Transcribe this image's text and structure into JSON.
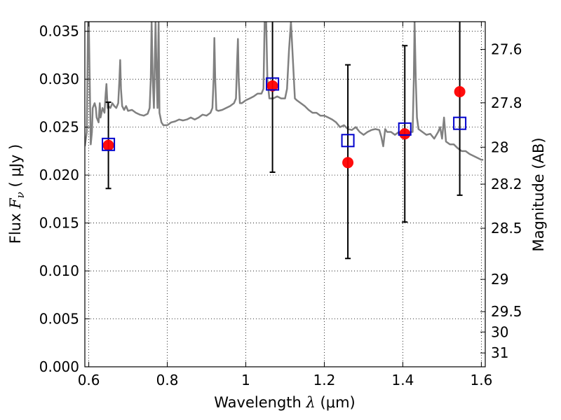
{
  "chart_data": {
    "type": "scatter",
    "xlabel": "Wavelength",
    "xlabel_symbol": "λ",
    "xlabel_unit": "(μm)",
    "ylabel": "Flux",
    "ylabel_symbol": "F",
    "ylabel_subscript": "ν",
    "ylabel_unit": "( μJy )",
    "y2label": "Magnitude (AB)",
    "xlim": [
      0.59,
      1.61
    ],
    "ylim": [
      0.0,
      0.036
    ],
    "grid": true,
    "grid_style": "dotted",
    "x_ticks": [
      {
        "value": 0.6,
        "label": "0.6"
      },
      {
        "value": 0.8,
        "label": "0.8"
      },
      {
        "value": 1.0,
        "label": "1"
      },
      {
        "value": 1.2,
        "label": "1.2"
      },
      {
        "value": 1.4,
        "label": "1.4"
      },
      {
        "value": 1.6,
        "label": "1.6"
      }
    ],
    "y_ticks": [
      {
        "value": 0.0,
        "label": "0.000"
      },
      {
        "value": 0.005,
        "label": "0.005"
      },
      {
        "value": 0.01,
        "label": "0.010"
      },
      {
        "value": 0.015,
        "label": "0.015"
      },
      {
        "value": 0.02,
        "label": "0.020"
      },
      {
        "value": 0.025,
        "label": "0.025"
      },
      {
        "value": 0.03,
        "label": "0.030"
      },
      {
        "value": 0.035,
        "label": "0.035"
      }
    ],
    "y2_ticks": [
      {
        "label": "27.6",
        "mag": 27.6
      },
      {
        "label": "27.8",
        "mag": 27.8
      },
      {
        "label": "28",
        "mag": 28.0
      },
      {
        "label": "28.2",
        "mag": 28.2
      },
      {
        "label": "28.5",
        "mag": 28.5
      },
      {
        "label": "29",
        "mag": 29.0
      },
      {
        "label": "29.5",
        "mag": 29.5
      },
      {
        "label": "30",
        "mag": 30.0
      },
      {
        "label": "31",
        "mag": 31.0
      }
    ],
    "series": [
      {
        "kind": "line",
        "color": "#808080",
        "x": [
          0.59,
          0.595,
          0.598,
          0.6,
          0.605,
          0.608,
          0.61,
          0.615,
          0.618,
          0.62,
          0.625,
          0.628,
          0.63,
          0.635,
          0.64,
          0.643,
          0.645,
          0.648,
          0.65,
          0.655,
          0.66,
          0.665,
          0.67,
          0.675,
          0.678,
          0.68,
          0.682,
          0.685,
          0.69,
          0.695,
          0.7,
          0.71,
          0.72,
          0.73,
          0.74,
          0.75,
          0.755,
          0.758,
          0.76,
          0.763,
          0.766,
          0.77,
          0.773,
          0.775,
          0.778,
          0.78,
          0.785,
          0.79,
          0.8,
          0.81,
          0.82,
          0.83,
          0.84,
          0.85,
          0.86,
          0.87,
          0.88,
          0.89,
          0.9,
          0.91,
          0.915,
          0.918,
          0.92,
          0.922,
          0.925,
          0.93,
          0.94,
          0.95,
          0.96,
          0.97,
          0.975,
          0.978,
          0.98,
          0.982,
          0.985,
          0.99,
          1.0,
          1.01,
          1.02,
          1.03,
          1.04,
          1.045,
          1.048,
          1.05,
          1.052,
          1.055,
          1.06,
          1.07,
          1.08,
          1.09,
          1.1,
          1.105,
          1.11,
          1.115,
          1.12,
          1.125,
          1.13,
          1.14,
          1.15,
          1.16,
          1.17,
          1.18,
          1.19,
          1.2,
          1.21,
          1.22,
          1.23,
          1.24,
          1.25,
          1.26,
          1.27,
          1.28,
          1.29,
          1.3,
          1.31,
          1.32,
          1.33,
          1.34,
          1.345,
          1.35,
          1.355,
          1.36,
          1.37,
          1.38,
          1.39,
          1.4,
          1.41,
          1.42,
          1.425,
          1.428,
          1.43,
          1.433,
          1.436,
          1.44,
          1.45,
          1.46,
          1.47,
          1.48,
          1.49,
          1.495,
          1.5,
          1.505,
          1.51,
          1.52,
          1.53,
          1.54,
          1.55,
          1.56,
          1.57,
          1.58,
          1.59,
          1.6,
          1.605
        ],
        "y": [
          0.023,
          0.0245,
          0.036,
          0.036,
          0.0232,
          0.0245,
          0.027,
          0.0275,
          0.027,
          0.026,
          0.0255,
          0.0275,
          0.026,
          0.027,
          0.0265,
          0.0285,
          0.0295,
          0.027,
          0.0272,
          0.027,
          0.0275,
          0.0272,
          0.027,
          0.0275,
          0.03,
          0.032,
          0.029,
          0.0272,
          0.0268,
          0.0272,
          0.0267,
          0.0268,
          0.0265,
          0.0263,
          0.0262,
          0.0264,
          0.027,
          0.03,
          0.036,
          0.03,
          0.027,
          0.036,
          0.03,
          0.027,
          0.036,
          0.0265,
          0.0255,
          0.0252,
          0.0252,
          0.0255,
          0.0256,
          0.0258,
          0.0257,
          0.0258,
          0.026,
          0.0258,
          0.026,
          0.0263,
          0.0262,
          0.0265,
          0.027,
          0.03,
          0.0343,
          0.03,
          0.0268,
          0.0267,
          0.0268,
          0.027,
          0.0272,
          0.0275,
          0.028,
          0.032,
          0.0342,
          0.03,
          0.0275,
          0.0275,
          0.0278,
          0.028,
          0.0282,
          0.0285,
          0.0285,
          0.029,
          0.036,
          0.036,
          0.036,
          0.03,
          0.028,
          0.028,
          0.0282,
          0.028,
          0.028,
          0.029,
          0.033,
          0.036,
          0.032,
          0.028,
          0.0278,
          0.0275,
          0.0272,
          0.0268,
          0.0265,
          0.0265,
          0.0262,
          0.0262,
          0.026,
          0.0258,
          0.0255,
          0.025,
          0.0252,
          0.0248,
          0.0247,
          0.025,
          0.0245,
          0.0242,
          0.0245,
          0.0247,
          0.0248,
          0.0247,
          0.024,
          0.023,
          0.0248,
          0.0245,
          0.0245,
          0.0242,
          0.0245,
          0.024,
          0.0242,
          0.0245,
          0.0245,
          0.03,
          0.036,
          0.03,
          0.026,
          0.0248,
          0.0245,
          0.0242,
          0.0243,
          0.0238,
          0.0245,
          0.025,
          0.0238,
          0.026,
          0.0235,
          0.0232,
          0.0232,
          0.0228,
          0.0225,
          0.0225,
          0.0222,
          0.022,
          0.0218,
          0.0216,
          0.0216
        ],
        "clip_top": true
      },
      {
        "kind": "scatter",
        "marker": "circle",
        "color": "#ff0000",
        "points": [
          {
            "x": 0.65,
            "y": 0.0231
          },
          {
            "x": 1.068,
            "y": 0.0293
          },
          {
            "x": 1.26,
            "y": 0.0213
          },
          {
            "x": 1.405,
            "y": 0.0243
          },
          {
            "x": 1.545,
            "y": 0.0287
          }
        ]
      },
      {
        "kind": "scatter",
        "marker": "square-open",
        "color": "#0000cc",
        "points": [
          {
            "x": 0.65,
            "y": 0.0232
          },
          {
            "x": 1.068,
            "y": 0.0295
          },
          {
            "x": 1.26,
            "y": 0.0236
          },
          {
            "x": 1.405,
            "y": 0.0248
          },
          {
            "x": 1.545,
            "y": 0.0254
          }
        ]
      },
      {
        "kind": "errorbar",
        "color": "#000000",
        "points": [
          {
            "x": 0.65,
            "low": 0.0186,
            "high": 0.0276
          },
          {
            "x": 1.068,
            "low": 0.0203,
            "high": 0.0365
          },
          {
            "x": 1.26,
            "low": 0.0113,
            "high": 0.0315
          },
          {
            "x": 1.405,
            "low": 0.0151,
            "high": 0.0335
          },
          {
            "x": 1.545,
            "low": 0.0179,
            "high": 0.0365
          }
        ]
      }
    ]
  }
}
